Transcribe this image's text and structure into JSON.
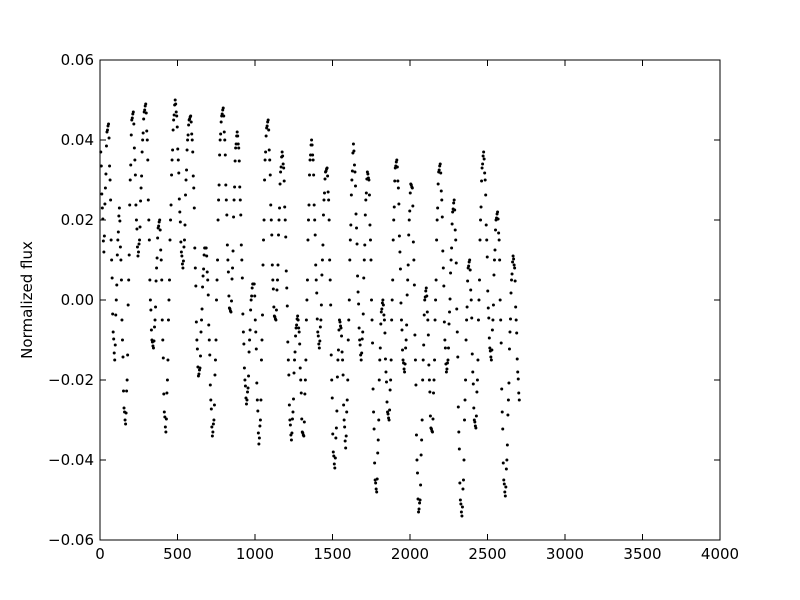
{
  "chart_data": {
    "type": "scatter",
    "title": "",
    "xlabel": "",
    "ylabel": "Normalized flux",
    "xlim": [
      0,
      4000
    ],
    "ylim": [
      -0.06,
      0.06
    ],
    "grid": false,
    "legend": "none",
    "marker_color": "#000000",
    "x_ticks": [
      0,
      500,
      1000,
      1500,
      2000,
      2500,
      3000,
      3500,
      4000
    ],
    "x_tick_labels": [
      "0",
      "500",
      "1000",
      "1500",
      "2000",
      "2500",
      "3000",
      "3500",
      "4000"
    ],
    "y_ticks": [
      -0.06,
      -0.04,
      -0.02,
      0.0,
      0.02,
      0.04,
      0.06
    ],
    "y_tick_labels": [
      "−0.06",
      "−0.04",
      "−0.02",
      "0.00",
      "0.02",
      "0.04",
      "0.06"
    ],
    "x_start": 5,
    "x_step": 10,
    "series": [
      {
        "y": [
          0.037,
          0.023,
          0.012,
          0.028,
          0.042,
          0.044,
          0.03,
          0.01,
          -0.008,
          -0.015,
          0.0,
          0.015,
          0.023,
          0.01,
          -0.01,
          -0.027,
          -0.031,
          -0.02,
          0.005,
          0.03,
          0.045,
          0.047,
          0.035,
          0.02,
          0.011,
          0.015,
          0.028,
          0.04,
          0.047,
          0.049,
          0.04,
          0.02,
          0.0,
          -0.01,
          -0.012,
          -0.005,
          0.008,
          0.018,
          0.02,
          0.01,
          -0.01,
          -0.028,
          -0.033,
          -0.02,
          0.0,
          0.02,
          0.035,
          0.045,
          0.05,
          0.046,
          0.035,
          0.022,
          0.012,
          0.008,
          0.015,
          0.03,
          0.04,
          0.045,
          0.046,
          0.04,
          0.028,
          0.008,
          -0.01,
          -0.019,
          -0.017,
          -0.005,
          0.006,
          0.013,
          0.013,
          0.005,
          -0.01,
          -0.025,
          -0.034,
          -0.03,
          -0.015,
          0.005,
          0.025,
          0.04,
          0.046,
          0.048,
          0.04,
          0.025,
          0.01,
          -0.002,
          -0.003,
          0.008,
          0.025,
          0.038,
          0.042,
          0.038,
          0.025,
          0.01,
          -0.008,
          -0.02,
          -0.026,
          -0.022,
          -0.01,
          0.0,
          0.004,
          0.004,
          -0.008,
          -0.025,
          -0.036,
          -0.03,
          -0.01,
          0.015,
          0.035,
          0.043,
          0.045,
          0.035,
          0.02,
          0.005,
          -0.004,
          -0.005,
          0.005,
          0.02,
          0.032,
          0.037,
          0.033,
          0.02,
          0.003,
          -0.015,
          -0.03,
          -0.035,
          -0.028,
          -0.015,
          -0.007,
          -0.004,
          -0.008,
          -0.02,
          -0.033,
          -0.034,
          -0.02,
          0.0,
          0.02,
          0.035,
          0.04,
          0.035,
          0.02,
          0.005,
          -0.008,
          -0.012,
          -0.005,
          0.01,
          0.025,
          0.032,
          0.033,
          0.025,
          0.005,
          -0.02,
          -0.038,
          -0.042,
          -0.032,
          -0.015,
          -0.005,
          -0.007,
          -0.015,
          -0.03,
          -0.037,
          -0.025,
          -0.005,
          0.015,
          0.03,
          0.039,
          0.032,
          0.018,
          0.002,
          -0.01,
          -0.015,
          -0.008,
          0.01,
          0.025,
          0.032,
          0.03,
          0.015,
          -0.005,
          -0.028,
          -0.045,
          -0.048,
          -0.035,
          -0.015,
          -0.003,
          0.0,
          -0.005,
          -0.018,
          -0.028,
          -0.03,
          -0.02,
          0.0,
          0.02,
          0.033,
          0.035,
          0.028,
          0.012,
          -0.005,
          -0.015,
          -0.018,
          -0.01,
          0.005,
          0.02,
          0.029,
          0.028,
          0.01,
          -0.015,
          -0.04,
          -0.053,
          -0.05,
          -0.035,
          -0.015,
          0.0,
          0.003,
          -0.005,
          -0.02,
          -0.032,
          -0.033,
          -0.02,
          0.0,
          0.02,
          0.032,
          0.034,
          0.025,
          0.008,
          -0.01,
          -0.018,
          -0.015,
          -0.003,
          0.01,
          0.022,
          0.025,
          0.015,
          -0.008,
          -0.033,
          -0.05,
          -0.054,
          -0.045,
          -0.025,
          -0.005,
          0.008,
          0.01,
          0.0,
          -0.018,
          -0.03,
          -0.032,
          -0.02,
          0.0,
          0.02,
          0.033,
          0.037,
          0.03,
          0.015,
          -0.002,
          -0.012,
          -0.015,
          -0.005,
          0.01,
          0.02,
          0.022,
          0.015,
          -0.005,
          -0.028,
          -0.045,
          -0.049,
          -0.04,
          -0.025,
          -0.008,
          0.005,
          0.011,
          0.008,
          -0.005,
          -0.018,
          -0.025
        ]
      }
    ]
  }
}
